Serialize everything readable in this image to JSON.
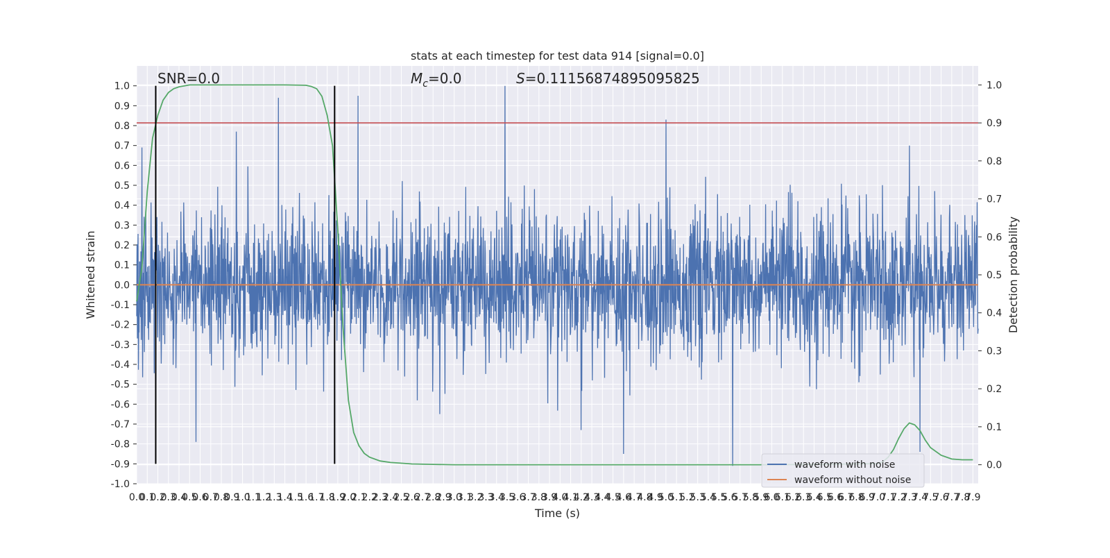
{
  "chart_data": {
    "type": "line",
    "title": "stats at each timestep for test data 914 [signal=0.0]",
    "xlabel": "Time (s)",
    "ylabel_left": "Whitened strain",
    "ylabel_right": "Detection probability",
    "xlim": [
      0.0,
      7.95
    ],
    "ylim_left": [
      -1.0,
      1.1
    ],
    "ylim_right": [
      -0.05,
      1.05
    ],
    "x_ticks": [
      "0.0",
      "0.1",
      "0.2",
      "0.3",
      "0.4",
      "0.5",
      "0.6",
      "0.7",
      "0.8",
      "0.9",
      "1.0",
      "1.1",
      "1.2",
      "1.3",
      "1.4",
      "1.5",
      "1.6",
      "1.7",
      "1.8",
      "1.9",
      "2.0",
      "2.1",
      "2.2",
      "2.3",
      "2.4",
      "2.5",
      "2.6",
      "2.7",
      "2.8",
      "2.9",
      "3.0",
      "3.1",
      "3.2",
      "3.3",
      "3.4",
      "3.5",
      "3.6",
      "3.7",
      "3.8",
      "3.9",
      "4.0",
      "4.1",
      "4.2",
      "4.3",
      "4.4",
      "4.5",
      "4.6",
      "4.7",
      "4.8",
      "4.9",
      "5.0",
      "5.1",
      "5.2",
      "5.3",
      "5.4",
      "5.5",
      "5.6",
      "5.7",
      "5.8",
      "5.9",
      "6.0",
      "6.1",
      "6.2",
      "6.3",
      "6.4",
      "6.5",
      "6.6",
      "6.7",
      "6.8",
      "6.9",
      "7.0",
      "7.1",
      "7.2",
      "7.3",
      "7.4",
      "7.5",
      "7.6",
      "7.7",
      "7.8",
      "7.9"
    ],
    "y_ticks_left": [
      "-1.0",
      "-0.9",
      "-0.8",
      "-0.7",
      "-0.6",
      "-0.5",
      "-0.4",
      "-0.3",
      "-0.2",
      "-0.1",
      "0.0",
      "0.1",
      "0.2",
      "0.3",
      "0.4",
      "0.5",
      "0.6",
      "0.7",
      "0.8",
      "0.9",
      "1.0"
    ],
    "y_ticks_right": [
      "0.0",
      "0.1",
      "0.2",
      "0.3",
      "0.4",
      "0.5",
      "0.6",
      "0.7",
      "0.8",
      "0.9",
      "1.0"
    ],
    "annotations": {
      "snr": "SNR=0.0",
      "mc_symbol": "M",
      "mc_sub": "c",
      "mc_value": "=0.0",
      "s_symbol": "S",
      "s_value": "=0.11156874895095825"
    },
    "series": [
      {
        "name": "waveform with noise",
        "color": "#4c72b0",
        "description_type": "noise",
        "typical_abs": 0.35,
        "notable_peaks": [
          {
            "x": 0.05,
            "y": 0.69
          },
          {
            "x": 1.34,
            "y": 0.94
          },
          {
            "x": 0.94,
            "y": 0.77
          },
          {
            "x": 2.09,
            "y": 0.95
          },
          {
            "x": 3.48,
            "y": 1.0
          },
          {
            "x": 5.0,
            "y": 0.83
          },
          {
            "x": 7.3,
            "y": 0.7
          },
          {
            "x": 0.56,
            "y": -0.79
          },
          {
            "x": 4.6,
            "y": -0.85
          },
          {
            "x": 5.63,
            "y": -0.91
          },
          {
            "x": 7.4,
            "y": -0.84
          },
          {
            "x": 4.2,
            "y": -0.73
          }
        ]
      },
      {
        "name": "waveform without noise",
        "color": "#dd8452",
        "values_constant": 0.0
      },
      {
        "name": "",
        "color": "#55a868",
        "axis": "right",
        "x": [
          0.0,
          0.05,
          0.1,
          0.15,
          0.2,
          0.25,
          0.3,
          0.35,
          0.4,
          0.5,
          0.6,
          0.8,
          1.0,
          1.2,
          1.4,
          1.6,
          1.65,
          1.7,
          1.75,
          1.8,
          1.85,
          1.9,
          1.95,
          2.0,
          2.05,
          2.1,
          2.15,
          2.2,
          2.3,
          2.4,
          2.5,
          2.6,
          2.8,
          3.0,
          3.5,
          4.0,
          4.5,
          5.0,
          5.5,
          6.0,
          6.5,
          7.0,
          7.05,
          7.1,
          7.15,
          7.2,
          7.25,
          7.3,
          7.35,
          7.4,
          7.45,
          7.5,
          7.6,
          7.7,
          7.8,
          7.9
        ],
        "y": [
          0.43,
          0.52,
          0.72,
          0.86,
          0.92,
          0.96,
          0.98,
          0.99,
          0.995,
          1.0,
          1.0,
          1.0,
          1.0,
          1.0,
          1.0,
          0.999,
          0.996,
          0.99,
          0.97,
          0.92,
          0.84,
          0.62,
          0.36,
          0.17,
          0.085,
          0.05,
          0.03,
          0.02,
          0.01,
          0.006,
          0.004,
          0.002,
          0.001,
          0.0,
          0.0,
          0.0,
          0.0,
          0.0,
          0.0,
          0.0,
          0.001,
          0.003,
          0.008,
          0.02,
          0.04,
          0.07,
          0.095,
          0.11,
          0.105,
          0.09,
          0.065,
          0.045,
          0.025,
          0.015,
          0.013,
          0.013
        ]
      }
    ],
    "hlines": [
      {
        "axis": "right",
        "y": 0.9,
        "color": "#c44e52"
      }
    ],
    "vlines": [
      {
        "x": 0.18,
        "y_from": -0.9,
        "y_to": 1.0,
        "color": "#000000"
      },
      {
        "x": 1.87,
        "y_from": -0.9,
        "y_to": 1.0,
        "color": "#000000"
      }
    ],
    "grid": true,
    "legend_position": "bottom-right"
  },
  "colors": {
    "plot_background": "#eaeaf2",
    "grid": "#ffffff",
    "noise": "#4c72b0",
    "clean": "#dd8452",
    "probability": "#55a868",
    "threshold": "#c44e52"
  }
}
